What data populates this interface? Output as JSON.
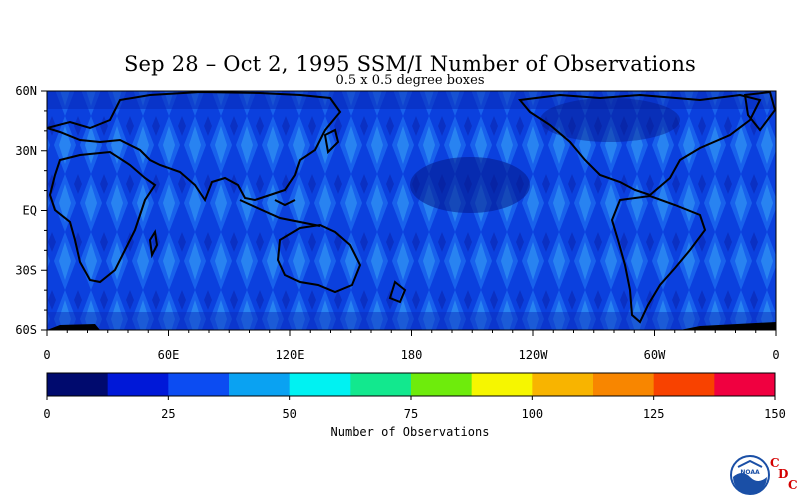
{
  "header": {
    "title": "Sep 28 – Oct 2, 1995 SSM/I Number of Observations",
    "subtitle": "0.5 x 0.5 degree boxes"
  },
  "map": {
    "lat_labels": [
      "60N",
      "30N",
      "EQ",
      "30S",
      "60S"
    ],
    "lon_labels": [
      "0",
      "60E",
      "120E",
      "180",
      "120W",
      "60W",
      "0"
    ],
    "lat_range": [
      -60,
      60
    ],
    "lon_range": [
      0,
      360
    ]
  },
  "colorbar": {
    "label": "Number of Observations",
    "tick_labels": [
      "0",
      "25",
      "50",
      "75",
      "100",
      "125",
      "150"
    ],
    "range": [
      0,
      150
    ],
    "colors": [
      "#000a6e",
      "#0018d8",
      "#0c4cf2",
      "#0aa2f2",
      "#00f2f2",
      "#12e88e",
      "#6eec0c",
      "#f6f600",
      "#f8b400",
      "#f88600",
      "#f84200",
      "#f00040"
    ]
  },
  "logo": {
    "name": "noaa-logo",
    "letters": [
      "C",
      "D",
      "C"
    ]
  }
}
